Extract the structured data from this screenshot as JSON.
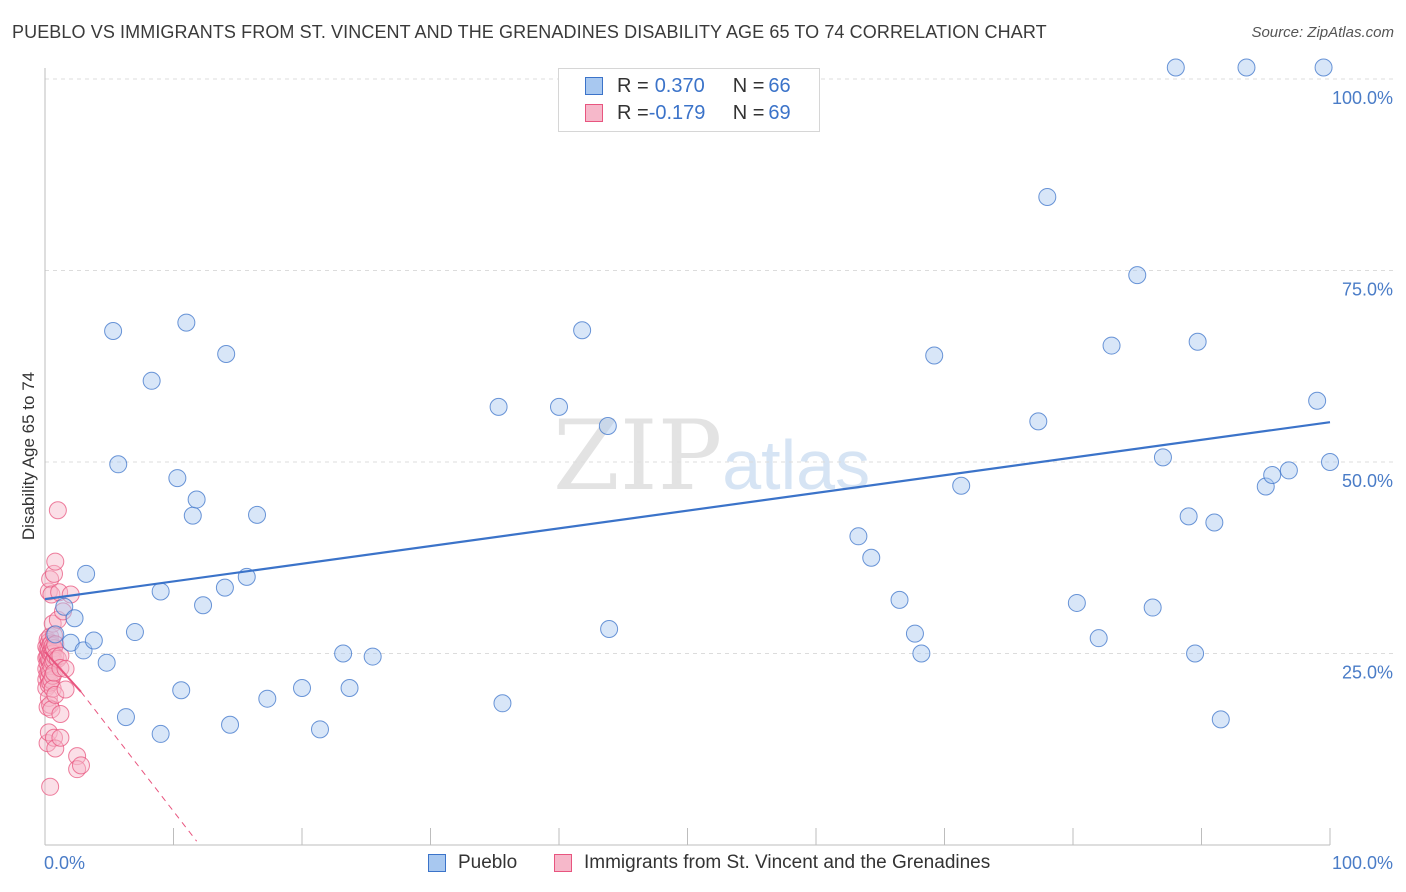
{
  "title": "PUEBLO VS IMMIGRANTS FROM ST. VINCENT AND THE GRENADINES DISABILITY AGE 65 TO 74 CORRELATION CHART",
  "source": "Source: ZipAtlas.com",
  "watermark": {
    "zip": "ZIP",
    "atlas": "atlas"
  },
  "legend": {
    "rows": [
      {
        "r_label": "R = ",
        "r_value": "0.370",
        "n_label": "N = ",
        "n_value": "66",
        "color": "#a8c8f0"
      },
      {
        "r_label": "R = ",
        "r_value": "-0.179",
        "n_label": "N = ",
        "n_value": "69",
        "color": "#f6b8ca"
      }
    ]
  },
  "bottom_legend": [
    {
      "label": "Pueblo",
      "color": "#a8c8f0"
    },
    {
      "label": "Immigrants from St. Vincent and the Grenadines",
      "color": "#f6b8ca"
    }
  ],
  "chart_data": {
    "type": "scatter",
    "title": "PUEBLO VS IMMIGRANTS FROM ST. VINCENT AND THE GRENADINES DISABILITY AGE 65 TO 74 CORRELATION CHART",
    "xlabel": "",
    "ylabel": "Disability Age 65 to 74",
    "xlim": [
      0,
      100
    ],
    "ylim": [
      0,
      100
    ],
    "x_tick_labels": [
      "0.0%",
      "100.0%"
    ],
    "y_ticks": [
      25,
      50,
      75,
      100
    ],
    "y_tick_labels": [
      "25.0%",
      "50.0%",
      "75.0%",
      "100.0%"
    ],
    "series": [
      {
        "name": "Pueblo",
        "color": "#3b73c9",
        "fill": "#a8c8f0",
        "r": 0.37,
        "n": 66,
        "trend": {
          "x": [
            0,
            100
          ],
          "y": [
            32.1,
            55.2
          ],
          "style": "solid"
        },
        "points": [
          [
            0.8,
            27.5
          ],
          [
            1.5,
            31.1
          ],
          [
            2.0,
            26.4
          ],
          [
            2.3,
            29.6
          ],
          [
            3.0,
            25.4
          ],
          [
            3.2,
            35.4
          ],
          [
            3.8,
            26.7
          ],
          [
            4.8,
            23.8
          ],
          [
            5.3,
            67.1
          ],
          [
            5.7,
            49.7
          ],
          [
            6.3,
            16.7
          ],
          [
            7.0,
            27.8
          ],
          [
            8.3,
            60.6
          ],
          [
            9.0,
            14.5
          ],
          [
            9.0,
            33.1
          ],
          [
            10.3,
            47.9
          ],
          [
            10.6,
            20.2
          ],
          [
            11.0,
            68.2
          ],
          [
            11.5,
            43.0
          ],
          [
            11.8,
            45.1
          ],
          [
            12.3,
            31.3
          ],
          [
            14.0,
            33.6
          ],
          [
            14.1,
            64.1
          ],
          [
            14.4,
            15.7
          ],
          [
            15.7,
            35.0
          ],
          [
            16.5,
            43.1
          ],
          [
            17.3,
            19.1
          ],
          [
            20.0,
            20.5
          ],
          [
            21.4,
            15.1
          ],
          [
            23.2,
            25.0
          ],
          [
            23.7,
            20.5
          ],
          [
            25.5,
            24.6
          ],
          [
            35.3,
            57.2
          ],
          [
            35.6,
            18.5
          ],
          [
            40.0,
            57.2
          ],
          [
            41.8,
            67.2
          ],
          [
            43.8,
            54.7
          ],
          [
            43.9,
            28.2
          ],
          [
            63.3,
            40.3
          ],
          [
            64.3,
            37.5
          ],
          [
            66.5,
            32.0
          ],
          [
            67.7,
            27.6
          ],
          [
            68.2,
            25.0
          ],
          [
            69.2,
            63.9
          ],
          [
            71.3,
            46.9
          ],
          [
            77.3,
            55.3
          ],
          [
            78.0,
            84.6
          ],
          [
            80.3,
            31.6
          ],
          [
            82.0,
            27.0
          ],
          [
            83.0,
            65.2
          ],
          [
            85.0,
            74.4
          ],
          [
            86.2,
            31.0
          ],
          [
            87.0,
            50.6
          ],
          [
            88.0,
            101.5
          ],
          [
            89.0,
            42.9
          ],
          [
            89.5,
            25.0
          ],
          [
            89.7,
            65.7
          ],
          [
            91.0,
            42.1
          ],
          [
            91.5,
            16.4
          ],
          [
            93.5,
            101.5
          ],
          [
            95.0,
            46.8
          ],
          [
            95.5,
            48.3
          ],
          [
            96.8,
            48.9
          ],
          [
            99.5,
            101.5
          ],
          [
            99.0,
            58.0
          ],
          [
            100.0,
            50.0
          ]
        ]
      },
      {
        "name": "Immigrants from St. Vincent and the Grenadines",
        "color": "#e8557f",
        "fill": "#f6b8ca",
        "r": -0.179,
        "n": 69,
        "trend": {
          "x": [
            0,
            2.8
          ],
          "y": [
            25.2,
            20.0
          ],
          "style": "solid"
        },
        "trend_extension": {
          "x": [
            2.8,
            11.8
          ],
          "y": [
            20.0,
            0.5
          ],
          "style": "dashed"
        },
        "points": [
          [
            0.1,
            25.9
          ],
          [
            0.1,
            24.4
          ],
          [
            0.1,
            23.0
          ],
          [
            0.1,
            21.6
          ],
          [
            0.1,
            20.5
          ],
          [
            0.2,
            26.8
          ],
          [
            0.2,
            25.6
          ],
          [
            0.2,
            24.5
          ],
          [
            0.2,
            23.7
          ],
          [
            0.2,
            22.3
          ],
          [
            0.2,
            18.0
          ],
          [
            0.2,
            13.3
          ],
          [
            0.3,
            33.1
          ],
          [
            0.3,
            26.5
          ],
          [
            0.3,
            25.5
          ],
          [
            0.3,
            24.2
          ],
          [
            0.3,
            22.9
          ],
          [
            0.3,
            21.8
          ],
          [
            0.3,
            20.9
          ],
          [
            0.3,
            19.2
          ],
          [
            0.3,
            14.7
          ],
          [
            0.4,
            34.7
          ],
          [
            0.4,
            27.2
          ],
          [
            0.4,
            26.1
          ],
          [
            0.4,
            25.1
          ],
          [
            0.4,
            24.0
          ],
          [
            0.4,
            22.6
          ],
          [
            0.4,
            21.2
          ],
          [
            0.4,
            18.3
          ],
          [
            0.4,
            7.6
          ],
          [
            0.5,
            32.7
          ],
          [
            0.5,
            26.3
          ],
          [
            0.5,
            25.3
          ],
          [
            0.5,
            24.8
          ],
          [
            0.5,
            23.4
          ],
          [
            0.5,
            21.5
          ],
          [
            0.5,
            17.7
          ],
          [
            0.6,
            28.9
          ],
          [
            0.6,
            26.0
          ],
          [
            0.6,
            25.0
          ],
          [
            0.6,
            23.9
          ],
          [
            0.6,
            22.1
          ],
          [
            0.6,
            20.4
          ],
          [
            0.7,
            35.4
          ],
          [
            0.7,
            27.4
          ],
          [
            0.7,
            25.7
          ],
          [
            0.7,
            24.1
          ],
          [
            0.7,
            22.5
          ],
          [
            0.7,
            14.0
          ],
          [
            0.8,
            37.0
          ],
          [
            0.8,
            26.2
          ],
          [
            0.8,
            24.6
          ],
          [
            0.8,
            19.6
          ],
          [
            0.8,
            12.6
          ],
          [
            1.0,
            43.7
          ],
          [
            1.0,
            29.4
          ],
          [
            1.0,
            24.3
          ],
          [
            1.1,
            33.0
          ],
          [
            1.2,
            24.7
          ],
          [
            1.2,
            23.1
          ],
          [
            1.2,
            17.1
          ],
          [
            1.2,
            14.0
          ],
          [
            1.4,
            30.5
          ],
          [
            1.6,
            20.3
          ],
          [
            1.6,
            23.0
          ],
          [
            2.0,
            32.7
          ],
          [
            2.5,
            11.6
          ],
          [
            2.5,
            9.9
          ],
          [
            2.8,
            10.4
          ]
        ]
      }
    ]
  }
}
